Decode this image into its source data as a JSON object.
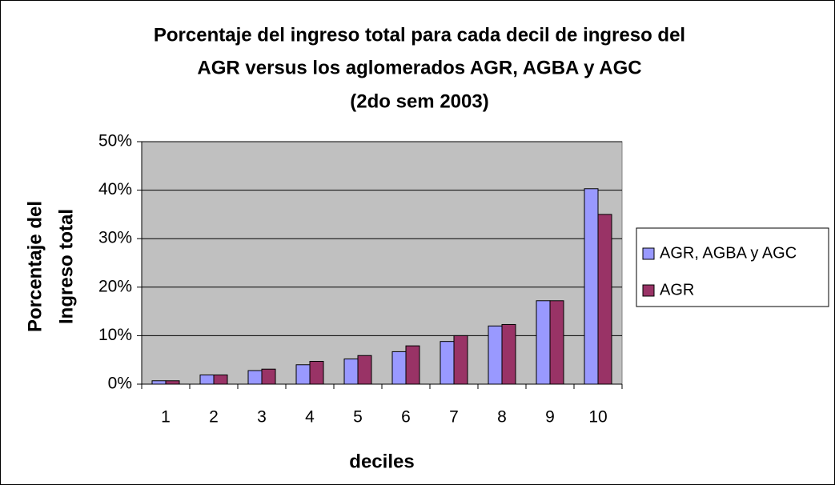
{
  "chart_data": {
    "type": "bar",
    "title": [
      "Porcentaje del ingreso total para cada decil de ingreso del",
      "AGR versus los aglomerados AGR, AGBA y AGC",
      "(2do sem 2003)"
    ],
    "x_label": "deciles",
    "y_label": [
      "Porcentaje del",
      "Ingreso total"
    ],
    "categories": [
      "1",
      "2",
      "3",
      "4",
      "5",
      "6",
      "7",
      "8",
      "9",
      "10"
    ],
    "series": [
      {
        "name": "AGR, AGBA y AGC",
        "color": "#9999ff",
        "values": [
          0.7,
          1.9,
          2.8,
          4.0,
          5.2,
          6.7,
          8.8,
          12.0,
          17.2,
          40.3
        ]
      },
      {
        "name": "AGR",
        "color": "#993366",
        "values": [
          0.7,
          1.9,
          3.1,
          4.7,
          5.9,
          7.9,
          10.0,
          12.3,
          17.2,
          35.0
        ]
      }
    ],
    "ylim": [
      0,
      50
    ],
    "yticks": [
      {
        "value": 0,
        "label": "0%"
      },
      {
        "value": 10,
        "label": "10%"
      },
      {
        "value": 20,
        "label": "20%"
      },
      {
        "value": 30,
        "label": "30%"
      },
      {
        "value": 40,
        "label": "40%"
      },
      {
        "value": 50,
        "label": "50%"
      }
    ],
    "grid": true,
    "legend": "right"
  }
}
